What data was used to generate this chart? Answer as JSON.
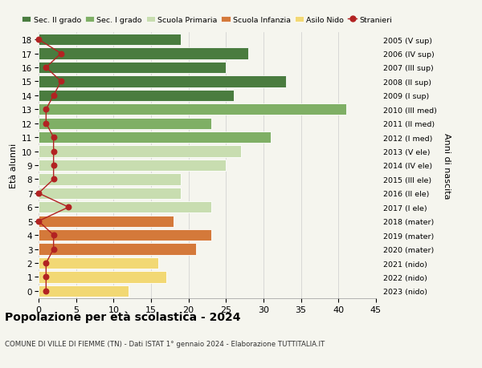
{
  "ages": [
    18,
    17,
    16,
    15,
    14,
    13,
    12,
    11,
    10,
    9,
    8,
    7,
    6,
    5,
    4,
    3,
    2,
    1,
    0
  ],
  "years": [
    "2005 (V sup)",
    "2006 (IV sup)",
    "2007 (III sup)",
    "2008 (II sup)",
    "2009 (I sup)",
    "2010 (III med)",
    "2011 (II med)",
    "2012 (I med)",
    "2013 (V ele)",
    "2014 (IV ele)",
    "2015 (III ele)",
    "2016 (II ele)",
    "2017 (I ele)",
    "2018 (mater)",
    "2019 (mater)",
    "2020 (mater)",
    "2021 (nido)",
    "2022 (nido)",
    "2023 (nido)"
  ],
  "bar_values": [
    19,
    28,
    25,
    33,
    26,
    41,
    23,
    31,
    27,
    25,
    19,
    19,
    23,
    18,
    23,
    21,
    16,
    17,
    12
  ],
  "bar_colors": [
    "#4a7c3f",
    "#4a7c3f",
    "#4a7c3f",
    "#4a7c3f",
    "#4a7c3f",
    "#7faf65",
    "#7faf65",
    "#7faf65",
    "#c8ddb0",
    "#c8ddb0",
    "#c8ddb0",
    "#c8ddb0",
    "#c8ddb0",
    "#d4793a",
    "#d4793a",
    "#d4793a",
    "#f2d874",
    "#f2d874",
    "#f2d874"
  ],
  "stranieri_values": [
    0,
    3,
    1,
    3,
    2,
    1,
    1,
    2,
    2,
    2,
    2,
    0,
    4,
    0,
    2,
    2,
    1,
    1,
    1
  ],
  "stranieri_color": "#b22222",
  "legend_items": [
    {
      "label": "Sec. II grado",
      "color": "#4a7c3f",
      "type": "bar"
    },
    {
      "label": "Sec. I grado",
      "color": "#7faf65",
      "type": "bar"
    },
    {
      "label": "Scuola Primaria",
      "color": "#c8ddb0",
      "type": "bar"
    },
    {
      "label": "Scuola Infanzia",
      "color": "#d4793a",
      "type": "bar"
    },
    {
      "label": "Asilo Nido",
      "color": "#f2d874",
      "type": "bar"
    },
    {
      "label": "Stranieri",
      "color": "#b22222",
      "type": "line"
    }
  ],
  "title": "Popolazione per età scolastica - 2024",
  "subtitle": "COMUNE DI VILLE DI FIEMME (TN) - Dati ISTAT 1° gennaio 2024 - Elaborazione TUTTITALIA.IT",
  "ylabel_left": "Età alunni",
  "ylabel_right": "Anni di nascita",
  "xlim": [
    0,
    45
  ],
  "xticks": [
    0,
    5,
    10,
    15,
    20,
    25,
    30,
    35,
    40,
    45
  ],
  "background_color": "#f5f5ee",
  "grid_color": "#cccccc"
}
